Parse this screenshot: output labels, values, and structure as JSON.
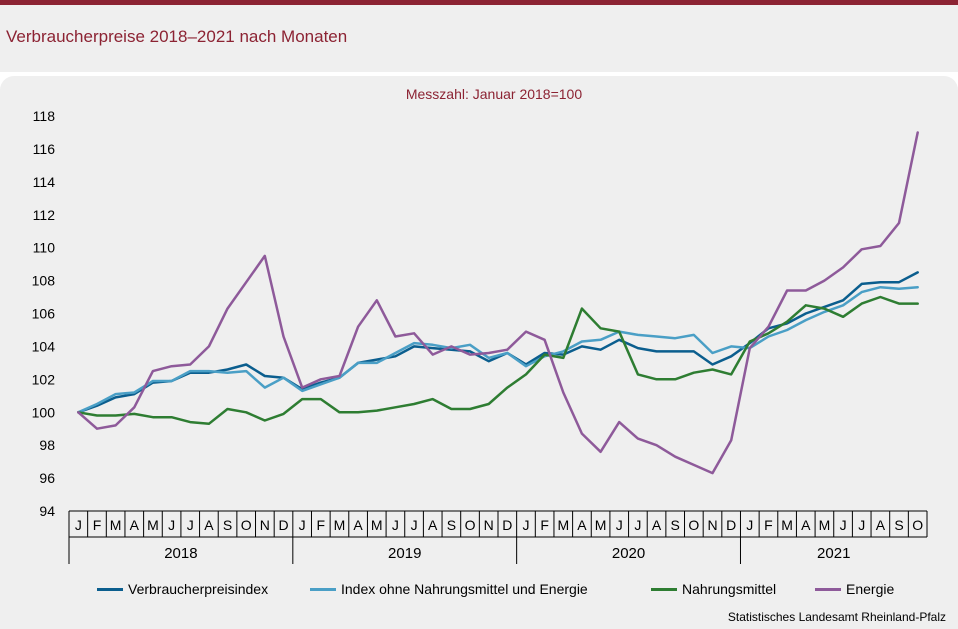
{
  "page": {
    "title": "Verbraucherpreise 2018–2021 nach Monaten",
    "source": "Statistisches Landesamt Rheinland-Pfalz"
  },
  "chart_data": {
    "type": "line",
    "title": "Verbraucherpreise 2018–2021 nach Monaten",
    "subtitle": "Messzahl:  Januar  2018=100",
    "ylabel": "",
    "xlabel": "",
    "ylim": [
      94,
      118
    ],
    "yticks": [
      94,
      96,
      98,
      100,
      102,
      104,
      106,
      108,
      110,
      112,
      114,
      116,
      118
    ],
    "months": [
      "J",
      "F",
      "M",
      "A",
      "M",
      "J",
      "J",
      "A",
      "S",
      "O",
      "N",
      "D",
      "J",
      "F",
      "M",
      "A",
      "M",
      "J",
      "J",
      "A",
      "S",
      "O",
      "N",
      "D",
      "J",
      "F",
      "M",
      "A",
      "M",
      "J",
      "J",
      "A",
      "S",
      "O",
      "N",
      "D",
      "J",
      "F",
      "M",
      "A",
      "M",
      "J",
      "J",
      "A",
      "S",
      "O"
    ],
    "years": [
      "2018",
      "2019",
      "2020",
      "2021"
    ],
    "legend_position": "bottom",
    "grid": false,
    "series": [
      {
        "name": "Verbraucherpreisindex",
        "color": "#0b5e8e",
        "values": [
          100.0,
          100.4,
          100.9,
          101.1,
          101.8,
          101.9,
          102.4,
          102.4,
          102.6,
          102.9,
          102.2,
          102.1,
          101.4,
          101.8,
          102.1,
          103.0,
          103.2,
          103.4,
          104.0,
          103.9,
          103.8,
          103.7,
          103.1,
          103.6,
          102.9,
          103.6,
          103.5,
          104.0,
          103.8,
          104.4,
          103.9,
          103.7,
          103.7,
          103.7,
          102.9,
          103.4,
          104.2,
          105.1,
          105.4,
          106.0,
          106.4,
          106.8,
          107.8,
          107.9,
          107.9,
          108.5
        ]
      },
      {
        "name": "Index ohne Nahrungsmittel und Energie",
        "color": "#4a9fc6",
        "values": [
          100.0,
          100.5,
          101.1,
          101.2,
          101.9,
          101.9,
          102.5,
          102.5,
          102.4,
          102.5,
          101.5,
          102.1,
          101.3,
          101.7,
          102.1,
          103.0,
          103.0,
          103.6,
          104.2,
          104.1,
          103.9,
          104.1,
          103.3,
          103.6,
          102.8,
          103.4,
          103.7,
          104.3,
          104.4,
          104.9,
          104.7,
          104.6,
          104.5,
          104.7,
          103.6,
          104.0,
          103.9,
          104.6,
          105.0,
          105.6,
          106.1,
          106.5,
          107.3,
          107.6,
          107.5,
          107.6
        ]
      },
      {
        "name": "Nahrungsmittel",
        "color": "#2e7d32",
        "values": [
          100.0,
          99.8,
          99.8,
          99.9,
          99.7,
          99.7,
          99.4,
          99.3,
          100.2,
          100.0,
          99.5,
          99.9,
          100.8,
          100.8,
          100.0,
          100.0,
          100.1,
          100.3,
          100.5,
          100.8,
          100.2,
          100.2,
          100.5,
          101.5,
          102.3,
          103.5,
          103.3,
          106.3,
          105.1,
          104.9,
          102.3,
          102.0,
          102.0,
          102.4,
          102.6,
          102.3,
          104.3,
          104.8,
          105.5,
          106.5,
          106.3,
          105.8,
          106.6,
          107.0,
          106.6,
          106.6
        ]
      },
      {
        "name": "Energie",
        "color": "#8e5a9a",
        "values": [
          100.0,
          99.0,
          99.2,
          100.3,
          102.5,
          102.8,
          102.9,
          104.0,
          106.3,
          107.9,
          109.5,
          104.6,
          101.5,
          102.0,
          102.2,
          105.2,
          106.8,
          104.6,
          104.8,
          103.5,
          104.0,
          103.5,
          103.6,
          103.8,
          104.9,
          104.4,
          101.2,
          98.7,
          97.6,
          99.4,
          98.4,
          98.0,
          97.3,
          96.8,
          96.3,
          98.3,
          103.9,
          105.2,
          107.4,
          107.4,
          108.0,
          108.8,
          109.9,
          110.1,
          111.5,
          117.0
        ]
      }
    ]
  }
}
